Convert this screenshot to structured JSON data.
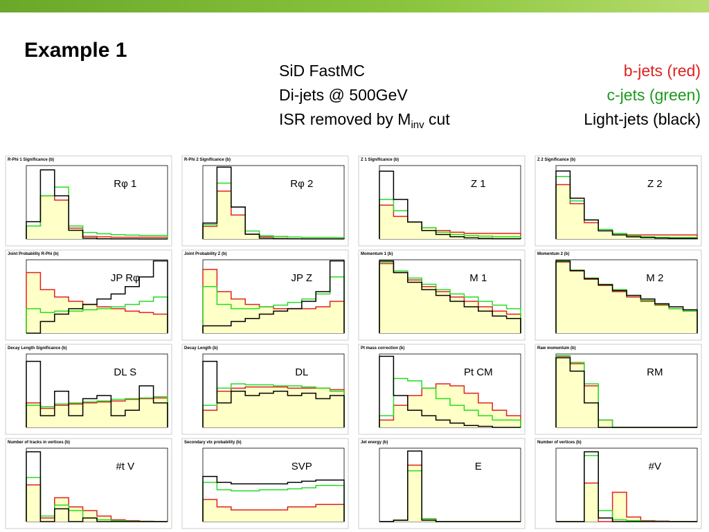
{
  "header": {
    "title": "Example 1",
    "info": [
      "SiD FastMC",
      "Di-jets @ 500GeV"
    ],
    "isr_line": [
      "ISR removed by M",
      "inv",
      " cut"
    ],
    "legend": [
      {
        "text": "b-jets (red)",
        "color": "#e02020"
      },
      {
        "text": "c-jets (green)",
        "color": "#1a9a1a"
      },
      {
        "text": "Light-jets (black)",
        "color": "#000000"
      }
    ]
  },
  "panels": [
    {
      "title": "R-Phi 1 Significance  (b)",
      "label": "Rφ 1",
      "log": false,
      "ylim": [
        0,
        1700
      ],
      "series": [
        {
          "color": "#e02020",
          "values": [
            300,
            1000,
            900,
            250,
            60,
            50,
            40,
            40,
            40,
            40
          ]
        },
        {
          "color": "#22dd22",
          "values": [
            300,
            1000,
            1200,
            300,
            150,
            120,
            100,
            90,
            80,
            80
          ]
        },
        {
          "color": "#000000",
          "values": [
            400,
            1600,
            1000,
            200,
            20,
            5,
            2,
            2,
            0,
            0
          ]
        }
      ]
    },
    {
      "title": "R-Phi 2 Significance  (b)",
      "label": "Rφ 2",
      "log": false,
      "ylim": [
        0,
        4600
      ],
      "series": [
        {
          "color": "#e02020",
          "values": [
            800,
            3000,
            1500,
            300,
            150,
            150,
            120,
            100,
            100,
            100
          ]
        },
        {
          "color": "#22dd22",
          "values": [
            900,
            3500,
            2000,
            500,
            200,
            150,
            120,
            100,
            100,
            100
          ]
        },
        {
          "color": "#000000",
          "values": [
            1000,
            4500,
            2000,
            300,
            50,
            20,
            10,
            5,
            5,
            5
          ]
        }
      ]
    },
    {
      "title": "Z 1 Significance  (b)",
      "label": "Z 1",
      "log": false,
      "ylim": [
        0,
        1300
      ],
      "series": [
        {
          "color": "#e02020",
          "values": [
            600,
            400,
            300,
            200,
            150,
            120,
            100,
            100,
            100,
            100
          ]
        },
        {
          "color": "#22dd22",
          "values": [
            700,
            500,
            300,
            200,
            120,
            80,
            60,
            50,
            40,
            40
          ]
        },
        {
          "color": "#000000",
          "values": [
            1200,
            700,
            300,
            150,
            80,
            40,
            20,
            10,
            5,
            5
          ]
        }
      ]
    },
    {
      "title": "Z 2 Significance  (b)",
      "label": "Z 2",
      "log": false,
      "ylim": [
        0,
        2700
      ],
      "series": [
        {
          "color": "#e02020",
          "values": [
            2000,
            1300,
            600,
            300,
            200,
            150,
            150,
            150,
            150,
            150
          ]
        },
        {
          "color": "#22dd22",
          "values": [
            2300,
            1400,
            700,
            350,
            200,
            120,
            80,
            60,
            50,
            50
          ]
        },
        {
          "color": "#000000",
          "values": [
            2500,
            1500,
            700,
            300,
            150,
            80,
            50,
            30,
            20,
            20
          ]
        }
      ]
    },
    {
      "title": "Joint Probability R-Phi  (b)",
      "label": "JP Rφ",
      "log": true,
      "ylim": [
        1,
        1000
      ],
      "series": [
        {
          "color": "#e02020",
          "values": [
            300,
            60,
            30,
            20,
            15,
            12,
            10,
            8,
            7,
            6
          ]
        },
        {
          "color": "#22dd22",
          "values": [
            10,
            7,
            8,
            8,
            9,
            10,
            12,
            15,
            20,
            30
          ]
        },
        {
          "color": "#000000",
          "values": [
            1,
            3,
            6,
            10,
            15,
            25,
            40,
            80,
            200,
            900
          ]
        }
      ]
    },
    {
      "title": "Joint Probability Z  (b)",
      "label": "JP Z",
      "log": true,
      "ylim": [
        1,
        1000
      ],
      "series": [
        {
          "color": "#e02020",
          "values": [
            400,
            50,
            25,
            15,
            12,
            10,
            10,
            10,
            12,
            20
          ]
        },
        {
          "color": "#22dd22",
          "values": [
            80,
            15,
            10,
            10,
            12,
            14,
            18,
            25,
            40,
            200
          ]
        },
        {
          "color": "#000000",
          "values": [
            2,
            2,
            3,
            4,
            6,
            8,
            10,
            20,
            50,
            900
          ]
        }
      ]
    },
    {
      "title": "Momentum 1  (b)",
      "label": "M 1",
      "log": true,
      "ylim": [
        1,
        1000
      ],
      "series": [
        {
          "color": "#e02020",
          "values": [
            700,
            300,
            150,
            80,
            50,
            30,
            20,
            12,
            8,
            6
          ]
        },
        {
          "color": "#22dd22",
          "values": [
            800,
            350,
            180,
            100,
            60,
            40,
            30,
            20,
            14,
            10
          ]
        },
        {
          "color": "#000000",
          "values": [
            900,
            300,
            120,
            60,
            35,
            20,
            12,
            8,
            5,
            4
          ]
        }
      ]
    },
    {
      "title": "Momentum 2  (b)",
      "label": "M 2",
      "log": true,
      "ylim": [
        1,
        1000
      ],
      "series": [
        {
          "color": "#e02020",
          "values": [
            800,
            350,
            160,
            90,
            50,
            30,
            20,
            14,
            10,
            8
          ]
        },
        {
          "color": "#22dd22",
          "values": [
            850,
            380,
            180,
            100,
            60,
            35,
            22,
            15,
            10,
            8
          ]
        },
        {
          "color": "#000000",
          "values": [
            900,
            360,
            170,
            95,
            55,
            35,
            25,
            16,
            12,
            9
          ]
        }
      ]
    },
    {
      "title": "Decay Length Significance  (b)",
      "label": "DL S",
      "log": true,
      "ylim": [
        1,
        1000
      ],
      "series": [
        {
          "color": "#e02020",
          "values": [
            10,
            6,
            8,
            9,
            10,
            11,
            12,
            14,
            15,
            16
          ]
        },
        {
          "color": "#22dd22",
          "values": [
            8,
            7,
            9,
            10,
            11,
            12,
            14,
            15,
            16,
            18
          ]
        },
        {
          "color": "#000000",
          "values": [
            500,
            3,
            30,
            3,
            15,
            20,
            3,
            5,
            50,
            10
          ]
        }
      ]
    },
    {
      "title": "Decay Length  (b)",
      "label": "DL",
      "log": true,
      "ylim": [
        1,
        1000
      ],
      "series": [
        {
          "color": "#e02020",
          "values": [
            5,
            30,
            40,
            45,
            45,
            45,
            40,
            40,
            40,
            35
          ]
        },
        {
          "color": "#22dd22",
          "values": [
            8,
            40,
            60,
            55,
            55,
            50,
            50,
            45,
            40,
            30
          ]
        },
        {
          "color": "#000000",
          "values": [
            500,
            10,
            30,
            20,
            25,
            30,
            20,
            25,
            15,
            20
          ]
        }
      ]
    },
    {
      "title": "Pt mass correction  (b)",
      "label": "Pt CM",
      "log": true,
      "ylim": [
        1,
        1000
      ],
      "series": [
        {
          "color": "#e02020",
          "values": [
            2,
            8,
            20,
            40,
            60,
            50,
            25,
            10,
            5,
            3
          ]
        },
        {
          "color": "#22dd22",
          "values": [
            3,
            100,
            80,
            40,
            15,
            8,
            5,
            3,
            2,
            2
          ]
        },
        {
          "color": "#000000",
          "values": [
            800,
            20,
            5,
            3,
            2,
            1.5,
            1.2,
            1.1,
            1,
            1
          ]
        }
      ]
    },
    {
      "title": "Raw momentum  (b)",
      "label": "RM",
      "log": true,
      "ylim": [
        1,
        1000
      ],
      "series": [
        {
          "color": "#e02020",
          "values": [
            800,
            400,
            50,
            2,
            1,
            1,
            1,
            1,
            1,
            1
          ]
        },
        {
          "color": "#22dd22",
          "values": [
            850,
            450,
            60,
            2,
            1,
            1,
            1,
            1,
            1,
            1
          ]
        },
        {
          "color": "#000000",
          "values": [
            700,
            200,
            10,
            1,
            1,
            1,
            1,
            1,
            1,
            1
          ]
        }
      ]
    },
    {
      "title": "Number of tracks in vertices  (b)",
      "label": "#t V",
      "log": false,
      "ylim": [
        0,
        400
      ],
      "series": [
        {
          "color": "#e02020",
          "values": [
            200,
            20,
            130,
            80,
            60,
            30,
            10,
            5,
            2,
            1
          ]
        },
        {
          "color": "#22dd22",
          "values": [
            240,
            30,
            90,
            60,
            20,
            10,
            5,
            2,
            0,
            0
          ]
        },
        {
          "color": "#000000",
          "values": [
            380,
            0,
            70,
            0,
            20,
            0,
            0,
            0,
            0,
            0
          ]
        }
      ]
    },
    {
      "title": "Secondary vtx probability  (b)",
      "label": "SVP",
      "log": true,
      "ylim": [
        1,
        1000
      ],
      "series": [
        {
          "color": "#e02020",
          "values": [
            8,
            4,
            3,
            3,
            3,
            3,
            4,
            4,
            5,
            5
          ]
        },
        {
          "color": "#22dd22",
          "values": [
            40,
            20,
            18,
            18,
            20,
            20,
            22,
            24,
            30,
            30
          ]
        },
        {
          "color": "#000000",
          "values": [
            70,
            40,
            35,
            35,
            35,
            35,
            40,
            45,
            50,
            50
          ]
        }
      ]
    },
    {
      "title": "Jet energy  (b)",
      "label": "E",
      "log": false,
      "ylim": [
        0,
        260
      ],
      "series": [
        {
          "color": "#e02020",
          "values": [
            0,
            5,
            200,
            10,
            0,
            0,
            0,
            0,
            0,
            0
          ]
        },
        {
          "color": "#22dd22",
          "values": [
            0,
            5,
            180,
            10,
            0,
            0,
            0,
            0,
            0,
            0
          ]
        },
        {
          "color": "#000000",
          "values": [
            0,
            5,
            250,
            5,
            0,
            0,
            0,
            0,
            0,
            0
          ]
        }
      ]
    },
    {
      "title": "Number of vertices  (b)",
      "label": "#V",
      "log": false,
      "ylim": [
        0,
        400
      ],
      "series": [
        {
          "color": "#e02020",
          "values": [
            0,
            0,
            210,
            0,
            160,
            25,
            5,
            3,
            1,
            0
          ]
        },
        {
          "color": "#22dd22",
          "values": [
            0,
            0,
            360,
            60,
            10,
            5,
            2,
            1,
            0,
            0
          ]
        },
        {
          "color": "#000000",
          "values": [
            0,
            0,
            380,
            20,
            0,
            0,
            0,
            0,
            0,
            0
          ]
        }
      ]
    }
  ]
}
